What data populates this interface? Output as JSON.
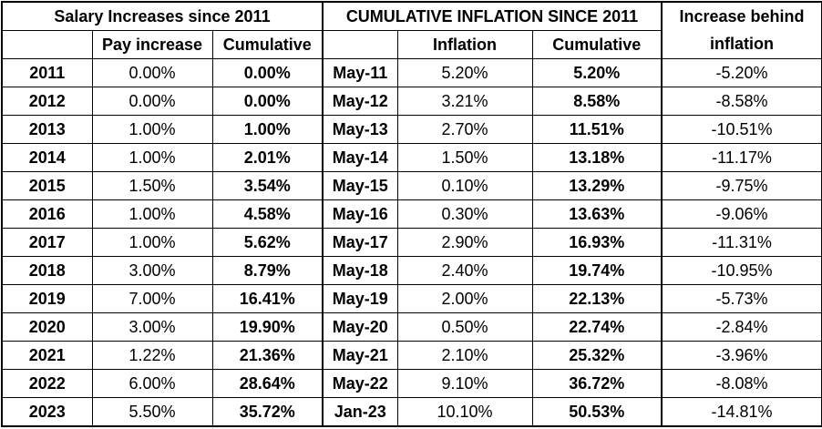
{
  "header": {
    "salary_group": "Salary Increases since 2011",
    "inflation_group": "CUMULATIVE INFLATION SINCE 2011",
    "behind_line1": "Increase behind",
    "behind_line2": "inflation",
    "pay_increase": "Pay increase",
    "salary_cumulative": "Cumulative",
    "inflation": "Inflation",
    "inflation_cumulative": "Cumulative"
  },
  "rows": [
    {
      "year": "2011",
      "pay": "0.00%",
      "pay_cum": "0.00%",
      "period": "May-11",
      "infl": "5.20%",
      "infl_cum": "5.20%",
      "behind": "-5.20%"
    },
    {
      "year": "2012",
      "pay": "0.00%",
      "pay_cum": "0.00%",
      "period": "May-12",
      "infl": "3.21%",
      "infl_cum": "8.58%",
      "behind": "-8.58%"
    },
    {
      "year": "2013",
      "pay": "1.00%",
      "pay_cum": "1.00%",
      "period": "May-13",
      "infl": "2.70%",
      "infl_cum": "11.51%",
      "behind": "-10.51%"
    },
    {
      "year": "2014",
      "pay": "1.00%",
      "pay_cum": "2.01%",
      "period": "May-14",
      "infl": "1.50%",
      "infl_cum": "13.18%",
      "behind": "-11.17%"
    },
    {
      "year": "2015",
      "pay": "1.50%",
      "pay_cum": "3.54%",
      "period": "May-15",
      "infl": "0.10%",
      "infl_cum": "13.29%",
      "behind": "-9.75%"
    },
    {
      "year": "2016",
      "pay": "1.00%",
      "pay_cum": "4.58%",
      "period": "May-16",
      "infl": "0.30%",
      "infl_cum": "13.63%",
      "behind": "-9.06%"
    },
    {
      "year": "2017",
      "pay": "1.00%",
      "pay_cum": "5.62%",
      "period": "May-17",
      "infl": "2.90%",
      "infl_cum": "16.93%",
      "behind": "-11.31%"
    },
    {
      "year": "2018",
      "pay": "3.00%",
      "pay_cum": "8.79%",
      "period": "May-18",
      "infl": "2.40%",
      "infl_cum": "19.74%",
      "behind": "-10.95%"
    },
    {
      "year": "2019",
      "pay": "7.00%",
      "pay_cum": "16.41%",
      "period": "May-19",
      "infl": "2.00%",
      "infl_cum": "22.13%",
      "behind": "-5.73%"
    },
    {
      "year": "2020",
      "pay": "3.00%",
      "pay_cum": "19.90%",
      "period": "May-20",
      "infl": "0.50%",
      "infl_cum": "22.74%",
      "behind": "-2.84%"
    },
    {
      "year": "2021",
      "pay": "1.22%",
      "pay_cum": "21.36%",
      "period": "May-21",
      "infl": "2.10%",
      "infl_cum": "25.32%",
      "behind": "-3.96%"
    },
    {
      "year": "2022",
      "pay": "6.00%",
      "pay_cum": "28.64%",
      "period": "May-22",
      "infl": "9.10%",
      "infl_cum": "36.72%",
      "behind": "-8.08%"
    },
    {
      "year": "2023",
      "pay": "5.50%",
      "pay_cum": "35.72%",
      "period": "Jan-23",
      "infl": "10.10%",
      "infl_cum": "50.53%",
      "behind": "-14.81%"
    }
  ]
}
